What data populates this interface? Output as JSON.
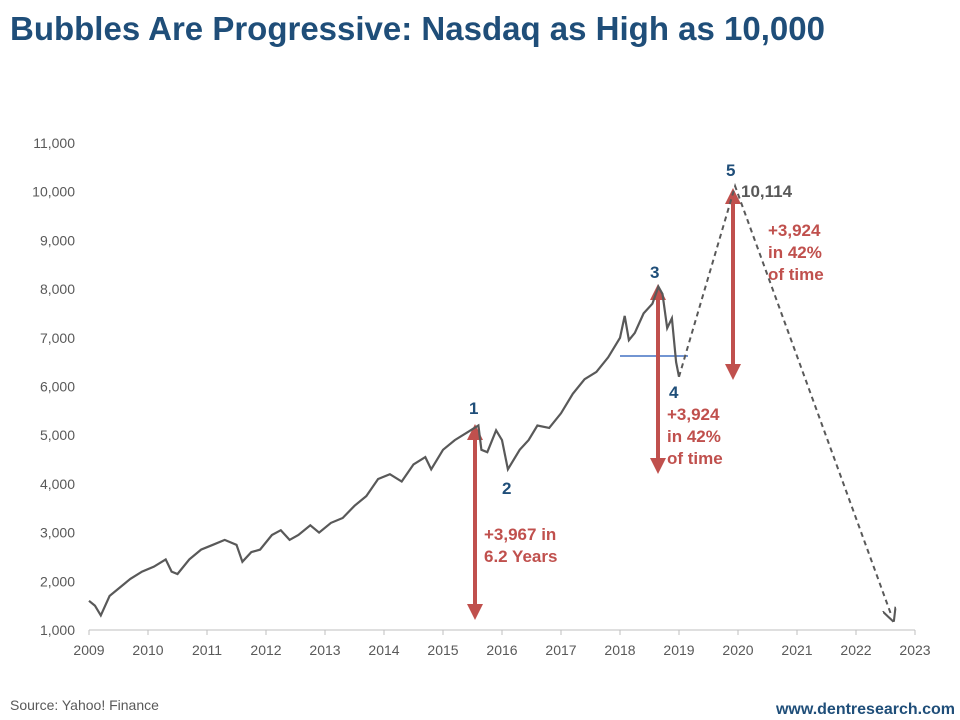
{
  "chart_data": {
    "type": "line",
    "title": "Bubbles Are Progressive: Nasdaq as High as 10,000",
    "series": [
      {
        "color": "#595959",
        "dashed": false,
        "x": [
          2009.0,
          2009.1,
          2009.2,
          2009.35,
          2009.5,
          2009.7,
          2009.9,
          2010.1,
          2010.3,
          2010.4,
          2010.5,
          2010.7,
          2010.9,
          2011.1,
          2011.3,
          2011.5,
          2011.6,
          2011.75,
          2011.9,
          2012.1,
          2012.25,
          2012.4,
          2012.55,
          2012.75,
          2012.9,
          2013.1,
          2013.3,
          2013.5,
          2013.7,
          2013.9,
          2014.1,
          2014.3,
          2014.5,
          2014.7,
          2014.8,
          2015.0,
          2015.2,
          2015.4,
          2015.6,
          2015.65,
          2015.75,
          2015.9,
          2016.0,
          2016.1,
          2016.3,
          2016.45,
          2016.6,
          2016.8,
          2017.0,
          2017.2,
          2017.4,
          2017.6,
          2017.8,
          2018.0,
          2018.08,
          2018.15,
          2018.25,
          2018.4,
          2018.55,
          2018.65,
          2018.72,
          2018.8,
          2018.88,
          2018.95,
          2019.0
        ],
        "values": [
          1600,
          1500,
          1300,
          1700,
          1850,
          2050,
          2200,
          2300,
          2450,
          2200,
          2150,
          2450,
          2650,
          2750,
          2850,
          2750,
          2400,
          2600,
          2650,
          2950,
          3050,
          2850,
          2950,
          3150,
          3000,
          3200,
          3300,
          3550,
          3750,
          4100,
          4200,
          4050,
          4400,
          4550,
          4300,
          4700,
          4900,
          5050,
          5200,
          4700,
          4650,
          5100,
          4900,
          4300,
          4700,
          4900,
          5200,
          5150,
          5450,
          5850,
          6150,
          6300,
          6600,
          7000,
          7450,
          6950,
          7100,
          7500,
          7700,
          8050,
          7900,
          7200,
          7400,
          6500,
          6200
        ]
      },
      {
        "color": "#595959",
        "dashed": true,
        "x": [
          2019.0,
          2019.95,
          2022.6
        ],
        "values": [
          6200,
          10114,
          1300
        ]
      }
    ],
    "xlim": [
      2009,
      2023
    ],
    "xticks": [
      2009,
      2010,
      2011,
      2012,
      2013,
      2014,
      2015,
      2016,
      2017,
      2018,
      2019,
      2020,
      2021,
      2022,
      2023
    ],
    "ylim": [
      1000,
      11000
    ],
    "yticks": [
      {
        "value": 1000,
        "label": "1,000"
      },
      {
        "value": 2000,
        "label": "2,000"
      },
      {
        "value": 3000,
        "label": "3,000"
      },
      {
        "value": 4000,
        "label": "4,000"
      },
      {
        "value": 5000,
        "label": "5,000"
      },
      {
        "value": 6000,
        "label": "6,000"
      },
      {
        "value": 7000,
        "label": "7,000"
      },
      {
        "value": 8000,
        "label": "8,000"
      },
      {
        "value": 9000,
        "label": "9,000"
      },
      {
        "value": 10000,
        "label": "10,000"
      },
      {
        "value": 11000,
        "label": "11,000"
      }
    ],
    "annotations": [
      {
        "lines": [
          "1"
        ]
      },
      {
        "lines": [
          "2"
        ]
      },
      {
        "lines": [
          "3"
        ]
      },
      {
        "lines": [
          "4"
        ]
      },
      {
        "lines": [
          "5"
        ]
      },
      {
        "lines": [
          "10,114"
        ]
      },
      {
        "lines": [
          "+3,967 in",
          "6.2 Years"
        ]
      },
      {
        "lines": [
          "+3,924",
          "in 42%",
          "of time"
        ]
      },
      {
        "lines": [
          "+3,924",
          "in 42%",
          "of time"
        ]
      }
    ],
    "source": "Source: Yahoo! Finance",
    "credit": "www.dentresearch.com"
  }
}
